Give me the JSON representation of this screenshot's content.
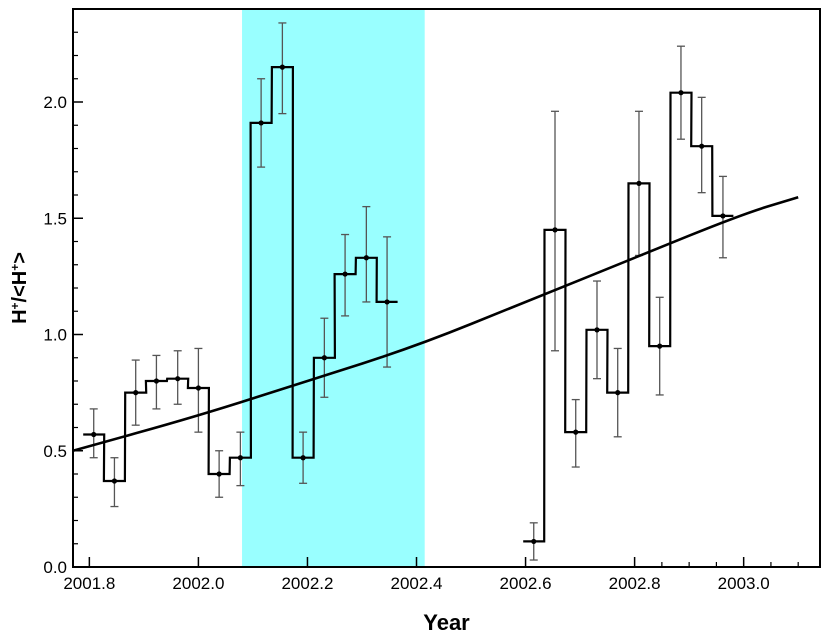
{
  "chart_data": {
    "type": "line",
    "xlabel": "Year",
    "ylabel": "H+/<H+>",
    "xlim": [
      2001.77,
      2003.14
    ],
    "ylim": [
      0.0,
      2.4
    ],
    "x_ticks": [
      {
        "value": 2001.8,
        "label": "2001.8"
      },
      {
        "value": 2002.0,
        "label": "2002.0"
      },
      {
        "value": 2002.2,
        "label": "2002.2"
      },
      {
        "value": 2002.4,
        "label": "2002.4"
      },
      {
        "value": 2002.6,
        "label": "2002.6"
      },
      {
        "value": 2002.8,
        "label": "2002.8"
      },
      {
        "value": 2003.0,
        "label": "2003.0"
      }
    ],
    "y_ticks": [
      {
        "value": 0.0,
        "label": "0.0"
      },
      {
        "value": 0.5,
        "label": "0.5"
      },
      {
        "value": 1.0,
        "label": "1.0"
      },
      {
        "value": 1.5,
        "label": "1.5"
      },
      {
        "value": 2.0,
        "label": "2.0"
      }
    ],
    "highlight_band": {
      "x_start": 2002.08,
      "x_end": 2002.415,
      "color": "#99ffff"
    },
    "bin_width": 0.0385,
    "series": [
      {
        "type": "step-histogram",
        "color": "#000000",
        "points": [
          {
            "x": 2001.808,
            "y": 0.57,
            "err_low": 0.47,
            "err_high": 0.68
          },
          {
            "x": 2001.846,
            "y": 0.37,
            "err_low": 0.26,
            "err_high": 0.47
          },
          {
            "x": 2001.885,
            "y": 0.75,
            "err_low": 0.61,
            "err_high": 0.89
          },
          {
            "x": 2001.923,
            "y": 0.8,
            "err_low": 0.68,
            "err_high": 0.91
          },
          {
            "x": 2001.962,
            "y": 0.81,
            "err_low": 0.7,
            "err_high": 0.93
          },
          {
            "x": 2002.0,
            "y": 0.77,
            "err_low": 0.58,
            "err_high": 0.94
          },
          {
            "x": 2002.038,
            "y": 0.4,
            "err_low": 0.3,
            "err_high": 0.5
          },
          {
            "x": 2002.077,
            "y": 0.47,
            "err_low": 0.35,
            "err_high": 0.58
          },
          {
            "x": 2002.115,
            "y": 1.91,
            "err_low": 1.72,
            "err_high": 2.1
          },
          {
            "x": 2002.154,
            "y": 2.15,
            "err_low": 1.95,
            "err_high": 2.34
          },
          {
            "x": 2002.192,
            "y": 0.47,
            "err_low": 0.36,
            "err_high": 0.58
          },
          {
            "x": 2002.231,
            "y": 0.9,
            "err_low": 0.73,
            "err_high": 1.07
          },
          {
            "x": 2002.269,
            "y": 1.26,
            "err_low": 1.08,
            "err_high": 1.43
          },
          {
            "x": 2002.308,
            "y": 1.33,
            "err_low": 1.14,
            "err_high": 1.55
          },
          {
            "x": 2002.346,
            "y": 1.14,
            "err_low": 0.86,
            "err_high": 1.42
          },
          {
            "x": 2002.615,
            "y": 0.11,
            "err_low": 0.03,
            "err_high": 0.19
          },
          {
            "x": 2002.654,
            "y": 1.45,
            "err_low": 0.93,
            "err_high": 1.96
          },
          {
            "x": 2002.692,
            "y": 0.58,
            "err_low": 0.43,
            "err_high": 0.72
          },
          {
            "x": 2002.731,
            "y": 1.02,
            "err_low": 0.81,
            "err_high": 1.23
          },
          {
            "x": 2002.769,
            "y": 0.75,
            "err_low": 0.56,
            "err_high": 0.94
          },
          {
            "x": 2002.808,
            "y": 1.65,
            "err_low": 1.34,
            "err_high": 1.96
          },
          {
            "x": 2002.846,
            "y": 0.95,
            "err_low": 0.74,
            "err_high": 1.16
          },
          {
            "x": 2002.885,
            "y": 2.04,
            "err_low": 1.84,
            "err_high": 2.24
          },
          {
            "x": 2002.923,
            "y": 1.81,
            "err_low": 1.61,
            "err_high": 2.02
          },
          {
            "x": 2002.962,
            "y": 1.51,
            "err_low": 1.33,
            "err_high": 1.68
          }
        ]
      },
      {
        "type": "fit-curve",
        "color": "#000000",
        "points": [
          {
            "x": 2001.77,
            "y": 0.5
          },
          {
            "x": 2002.0,
            "y": 0.65
          },
          {
            "x": 2002.2,
            "y": 0.8
          },
          {
            "x": 2002.4,
            "y": 0.95
          },
          {
            "x": 2002.6,
            "y": 1.14
          },
          {
            "x": 2002.8,
            "y": 1.33
          },
          {
            "x": 2003.0,
            "y": 1.52
          },
          {
            "x": 2003.1,
            "y": 1.59
          }
        ]
      }
    ]
  }
}
